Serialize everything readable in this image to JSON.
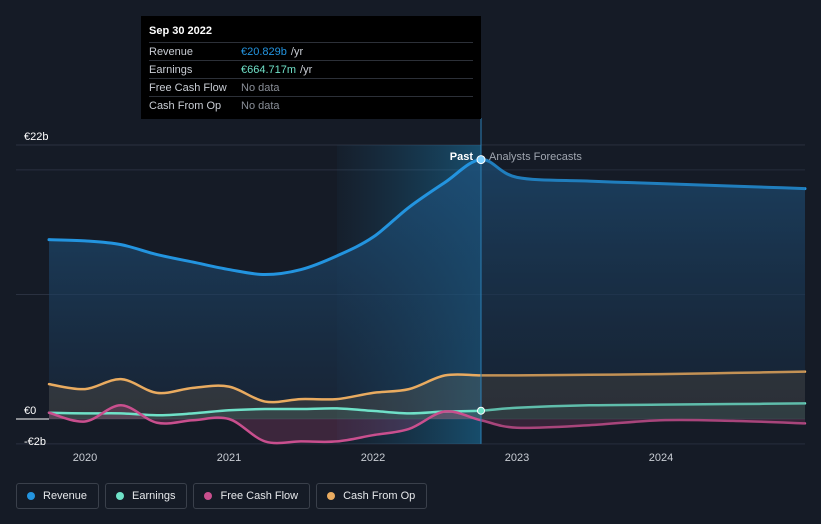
{
  "chart_data": {
    "type": "line",
    "x_ticks": [
      "2020",
      "2021",
      "2022",
      "2023",
      "2024"
    ],
    "y_ticks": [
      "€22b",
      "€0",
      "-€2b"
    ],
    "ylim": [
      -2,
      22
    ],
    "past_label": "Past",
    "forecast_label": "Analysts Forecasts",
    "grid": true,
    "legend_position": "bottom",
    "series": [
      {
        "name": "Revenue",
        "color": "#2394df",
        "points": [
          [
            2019.75,
            14.4
          ],
          [
            2020.0,
            14.3
          ],
          [
            2020.25,
            14.0
          ],
          [
            2020.5,
            13.2
          ],
          [
            2020.75,
            12.6
          ],
          [
            2021.0,
            12.0
          ],
          [
            2021.25,
            11.6
          ],
          [
            2021.5,
            12.0
          ],
          [
            2021.75,
            13.1
          ],
          [
            2022.0,
            14.6
          ],
          [
            2022.25,
            17.0
          ],
          [
            2022.5,
            19.0
          ],
          [
            2022.75,
            20.829
          ],
          [
            2023.0,
            19.4
          ],
          [
            2023.5,
            19.1
          ],
          [
            2024.0,
            18.9
          ],
          [
            2024.25,
            18.8
          ],
          [
            2024.5,
            18.7
          ],
          [
            2024.75,
            18.6
          ],
          [
            2025.0,
            18.5
          ]
        ]
      },
      {
        "name": "Earnings",
        "color": "#6fe1c8",
        "points": [
          [
            2019.75,
            0.5
          ],
          [
            2020.0,
            0.45
          ],
          [
            2020.25,
            0.45
          ],
          [
            2020.5,
            0.3
          ],
          [
            2020.75,
            0.45
          ],
          [
            2021.0,
            0.7
          ],
          [
            2021.25,
            0.8
          ],
          [
            2021.5,
            0.8
          ],
          [
            2021.75,
            0.85
          ],
          [
            2022.0,
            0.65
          ],
          [
            2022.25,
            0.45
          ],
          [
            2022.5,
            0.6
          ],
          [
            2022.75,
            0.665
          ],
          [
            2023.0,
            0.9
          ],
          [
            2023.5,
            1.1
          ],
          [
            2024.0,
            1.15
          ],
          [
            2024.5,
            1.2
          ],
          [
            2025.0,
            1.25
          ]
        ]
      },
      {
        "name": "Free Cash Flow",
        "color": "#c94f8e",
        "points": [
          [
            2019.75,
            0.5
          ],
          [
            2020.0,
            -0.2
          ],
          [
            2020.25,
            1.1
          ],
          [
            2020.5,
            -0.3
          ],
          [
            2020.75,
            -0.1
          ],
          [
            2021.0,
            0.0
          ],
          [
            2021.25,
            -1.8
          ],
          [
            2021.5,
            -1.8
          ],
          [
            2021.75,
            -1.8
          ],
          [
            2022.0,
            -1.3
          ],
          [
            2022.25,
            -0.8
          ],
          [
            2022.5,
            0.6
          ],
          [
            2022.75,
            -0.1
          ],
          [
            2023.0,
            -0.7
          ],
          [
            2023.5,
            -0.5
          ],
          [
            2024.0,
            -0.1
          ],
          [
            2024.5,
            -0.15
          ],
          [
            2025.0,
            -0.35
          ]
        ]
      },
      {
        "name": "Cash From Op",
        "color": "#e9ab60",
        "points": [
          [
            2019.75,
            2.8
          ],
          [
            2020.0,
            2.4
          ],
          [
            2020.25,
            3.2
          ],
          [
            2020.5,
            2.1
          ],
          [
            2020.75,
            2.5
          ],
          [
            2021.0,
            2.6
          ],
          [
            2021.25,
            1.4
          ],
          [
            2021.5,
            1.6
          ],
          [
            2021.75,
            1.6
          ],
          [
            2022.0,
            2.1
          ],
          [
            2022.25,
            2.4
          ],
          [
            2022.5,
            3.5
          ],
          [
            2022.75,
            3.5
          ],
          [
            2023.0,
            3.5
          ],
          [
            2023.5,
            3.55
          ],
          [
            2024.0,
            3.6
          ],
          [
            2024.5,
            3.7
          ],
          [
            2025.0,
            3.8
          ]
        ]
      }
    ]
  },
  "tooltip": {
    "date": "Sep 30 2022",
    "rows": [
      {
        "label": "Revenue",
        "value": "€20.829b",
        "unit": "/yr"
      },
      {
        "label": "Earnings",
        "value": "€664.717m",
        "unit": "/yr"
      },
      {
        "label": "Free Cash Flow",
        "value": "No data",
        "unit": ""
      },
      {
        "label": "Cash From Op",
        "value": "No data",
        "unit": ""
      }
    ]
  },
  "legend": [
    {
      "label": "Revenue",
      "color": "#2394df"
    },
    {
      "label": "Earnings",
      "color": "#6fe1c8"
    },
    {
      "label": "Free Cash Flow",
      "color": "#c94f8e"
    },
    {
      "label": "Cash From Op",
      "color": "#e9ab60"
    }
  ]
}
